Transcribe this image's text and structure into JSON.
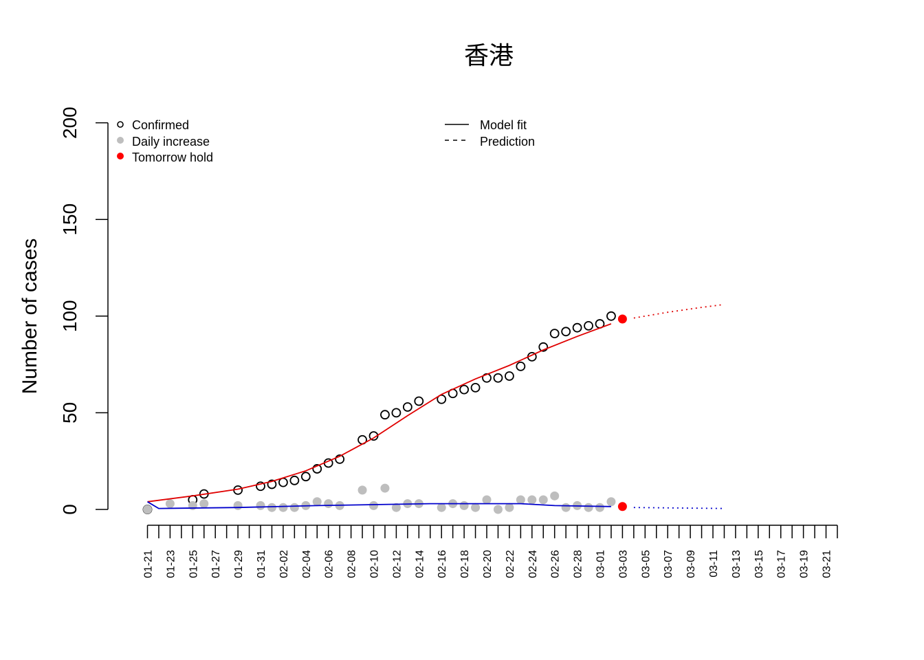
{
  "chart_data": {
    "type": "line",
    "title": "香港",
    "xlabel": "",
    "ylabel": "Number of cases",
    "ylim": [
      0,
      200
    ],
    "yticks": [
      "0",
      "50",
      "100",
      "150",
      "200"
    ],
    "xlim": [
      "01-21",
      "03-22"
    ],
    "xtick_labels": [
      "01-21",
      "01-23",
      "01-25",
      "01-27",
      "01-29",
      "01-31",
      "02-02",
      "02-04",
      "02-06",
      "02-08",
      "02-10",
      "02-12",
      "02-14",
      "02-16",
      "02-18",
      "02-20",
      "02-22",
      "02-24",
      "02-26",
      "02-28",
      "03-01",
      "03-03",
      "03-05",
      "03-07",
      "03-09",
      "03-11",
      "03-13",
      "03-15",
      "03-17",
      "03-19",
      "03-21"
    ],
    "legend_left": [
      {
        "label": "Confirmed",
        "marker": "open-circle",
        "color": "#000000"
      },
      {
        "label": "Daily increase",
        "marker": "filled-circle",
        "color": "#bebebe"
      },
      {
        "label": "Tomorrow hold",
        "marker": "filled-circle",
        "color": "#ff0000"
      }
    ],
    "legend_right": [
      {
        "label": "Model fit",
        "line": "solid"
      },
      {
        "label": "Prediction",
        "line": "dashed"
      }
    ],
    "series": [
      {
        "kind": "confirmed",
        "color": "#000000",
        "points": [
          [
            0,
            0
          ],
          [
            4,
            5
          ],
          [
            5,
            8
          ],
          [
            8,
            10
          ],
          [
            10,
            12
          ],
          [
            11,
            13
          ],
          [
            12,
            14
          ],
          [
            13,
            15
          ],
          [
            14,
            17
          ],
          [
            15,
            21
          ],
          [
            16,
            24
          ],
          [
            17,
            26
          ],
          [
            19,
            36
          ],
          [
            20,
            38
          ],
          [
            21,
            49
          ],
          [
            22,
            50
          ],
          [
            23,
            53
          ],
          [
            24,
            56
          ],
          [
            26,
            57
          ],
          [
            27,
            60
          ],
          [
            28,
            62
          ],
          [
            29,
            63
          ],
          [
            30,
            68
          ],
          [
            31,
            68
          ],
          [
            32,
            69
          ],
          [
            33,
            74
          ],
          [
            34,
            79
          ],
          [
            35,
            84
          ],
          [
            36,
            91
          ],
          [
            37,
            92
          ],
          [
            38,
            94
          ],
          [
            39,
            95
          ],
          [
            40,
            96
          ],
          [
            41,
            100
          ]
        ]
      },
      {
        "kind": "daily-increase",
        "color": "#bebebe",
        "points": [
          [
            0,
            0
          ],
          [
            2,
            3
          ],
          [
            4,
            2
          ],
          [
            5,
            3
          ],
          [
            8,
            2
          ],
          [
            10,
            2
          ],
          [
            11,
            1
          ],
          [
            12,
            1
          ],
          [
            13,
            1
          ],
          [
            14,
            2
          ],
          [
            15,
            4
          ],
          [
            16,
            3
          ],
          [
            17,
            2
          ],
          [
            19,
            10
          ],
          [
            20,
            2
          ],
          [
            21,
            11
          ],
          [
            22,
            1
          ],
          [
            23,
            3
          ],
          [
            24,
            3
          ],
          [
            26,
            1
          ],
          [
            27,
            3
          ],
          [
            28,
            2
          ],
          [
            29,
            1
          ],
          [
            30,
            5
          ],
          [
            31,
            0
          ],
          [
            32,
            1
          ],
          [
            33,
            5
          ],
          [
            34,
            5
          ],
          [
            35,
            5
          ],
          [
            36,
            7
          ],
          [
            37,
            1
          ],
          [
            38,
            2
          ],
          [
            39,
            1
          ],
          [
            40,
            1
          ],
          [
            41,
            4
          ]
        ]
      },
      {
        "kind": "model-fit-cumulative",
        "color": "#e00000",
        "line": "solid",
        "points": [
          [
            0,
            4
          ],
          [
            4,
            7
          ],
          [
            8,
            10.5
          ],
          [
            11,
            14.5
          ],
          [
            14,
            20
          ],
          [
            17,
            27.5
          ],
          [
            20,
            37
          ],
          [
            23,
            48.5
          ],
          [
            26,
            59.5
          ],
          [
            29,
            67.5
          ],
          [
            32,
            74.5
          ],
          [
            35,
            82.5
          ],
          [
            38,
            89.5
          ],
          [
            41,
            96
          ]
        ]
      },
      {
        "kind": "prediction-cumulative",
        "color": "#e00000",
        "line": "dotted",
        "points": [
          [
            43,
            99
          ],
          [
            46,
            102
          ],
          [
            49,
            104.5
          ],
          [
            51,
            106
          ]
        ]
      },
      {
        "kind": "model-fit-daily",
        "color": "#0000cc",
        "line": "solid",
        "points": [
          [
            0,
            4
          ],
          [
            1,
            0.5
          ],
          [
            8,
            1
          ],
          [
            15,
            2
          ],
          [
            20,
            2.5
          ],
          [
            25,
            3
          ],
          [
            30,
            3
          ],
          [
            33,
            3
          ],
          [
            36,
            2
          ],
          [
            41,
            1.5
          ]
        ]
      },
      {
        "kind": "prediction-daily",
        "color": "#0000cc",
        "line": "dotted",
        "points": [
          [
            43,
            1
          ],
          [
            51,
            0.5
          ]
        ]
      },
      {
        "kind": "tomorrow-hold",
        "color": "#ff0000",
        "points": [
          [
            42,
            98.5
          ],
          [
            42,
            1.5
          ]
        ]
      }
    ]
  }
}
